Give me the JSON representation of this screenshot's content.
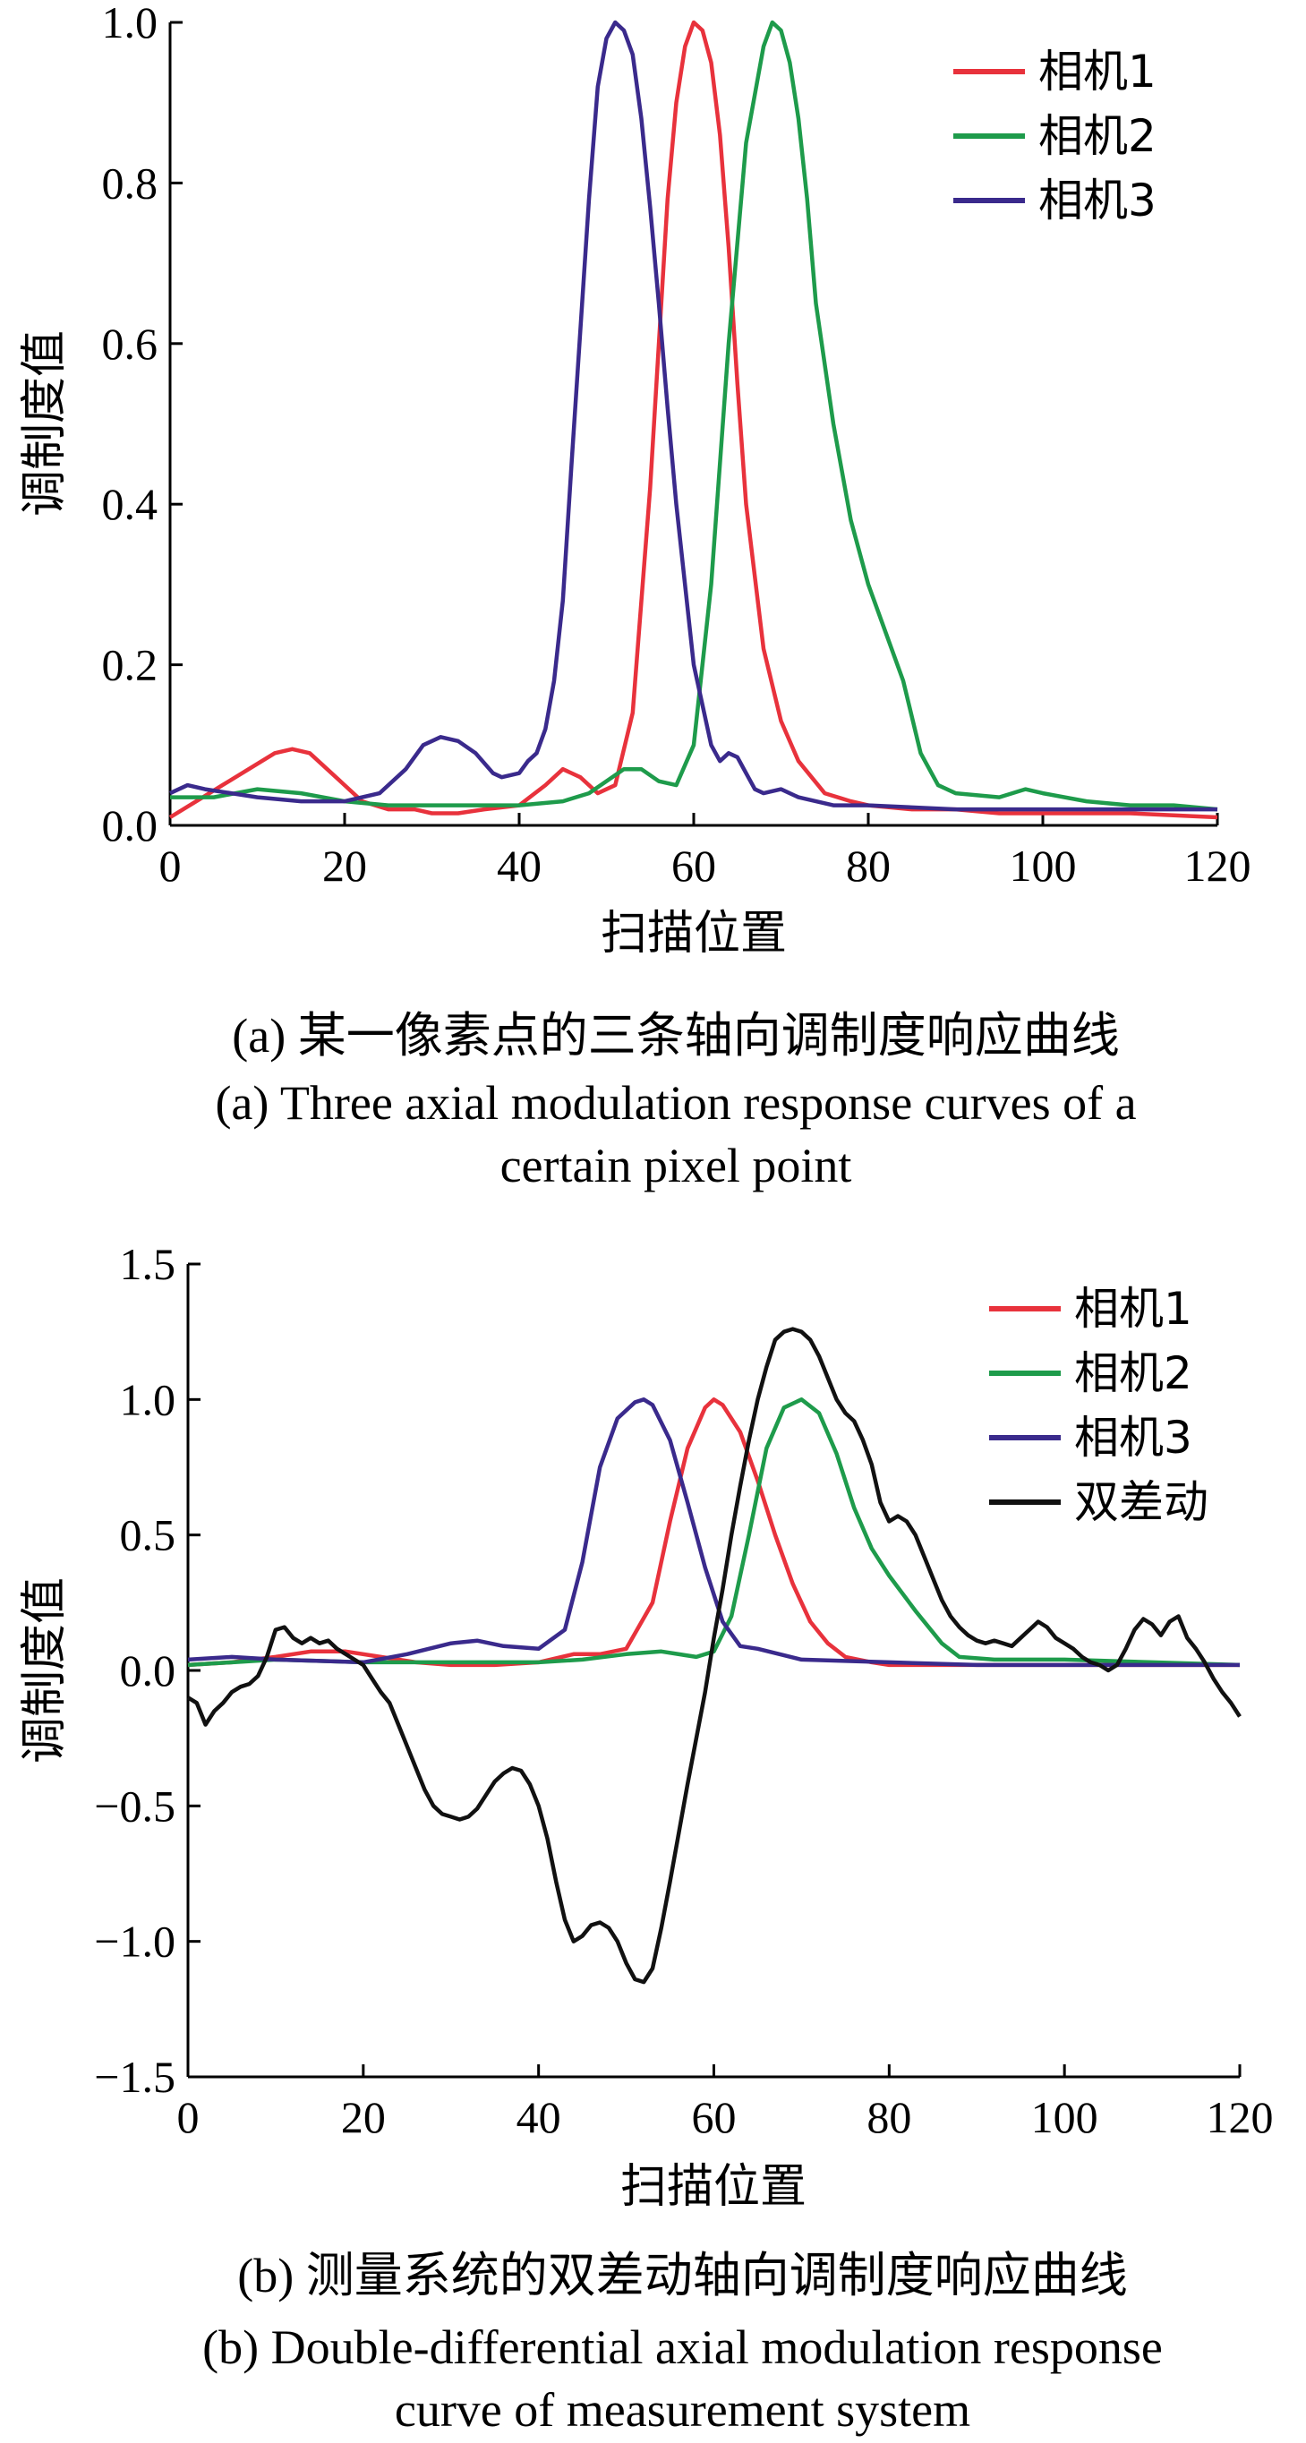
{
  "chart_data": [
    {
      "type": "line",
      "title": "",
      "xlabel": "扫描位置",
      "ylabel": "调制度值",
      "xlim": [
        0,
        120
      ],
      "ylim": [
        0,
        1.0
      ],
      "xticks": [
        0,
        20,
        40,
        60,
        80,
        100,
        120
      ],
      "xtick_labels": [
        "0",
        "20",
        "40",
        "60",
        "80",
        "100",
        "120"
      ],
      "yticks": [
        0,
        0.2,
        0.4,
        0.6,
        0.8,
        1.0
      ],
      "ytick_labels": [
        "0.0",
        "0.2",
        "0.4",
        "0.6",
        "0.8",
        "1.0"
      ],
      "grid": false,
      "legend_position": "top-right",
      "caption_zh": "(a) 某一像素点的三条轴向调制度响应曲线",
      "caption_en": [
        "(a) Three axial modulation response curves of a",
        "certain pixel point"
      ],
      "series": [
        {
          "name": "相机1",
          "color": "#e8323c",
          "x": [
            0,
            3,
            6,
            9,
            12,
            14,
            16,
            18,
            20,
            22,
            25,
            28,
            30,
            33,
            36,
            40,
            43,
            45,
            47,
            49,
            51,
            53,
            55,
            57,
            58,
            59,
            60,
            61,
            62,
            63,
            64,
            65,
            66,
            68,
            70,
            72,
            75,
            78,
            80,
            85,
            90,
            95,
            100,
            110,
            120
          ],
          "y": [
            0.01,
            0.03,
            0.05,
            0.07,
            0.09,
            0.095,
            0.09,
            0.07,
            0.05,
            0.03,
            0.02,
            0.02,
            0.015,
            0.015,
            0.02,
            0.025,
            0.05,
            0.07,
            0.06,
            0.04,
            0.05,
            0.14,
            0.42,
            0.78,
            0.9,
            0.97,
            1.0,
            0.99,
            0.95,
            0.86,
            0.72,
            0.55,
            0.4,
            0.22,
            0.13,
            0.08,
            0.04,
            0.03,
            0.025,
            0.02,
            0.02,
            0.015,
            0.015,
            0.015,
            0.01
          ]
        },
        {
          "name": "相机2",
          "color": "#1e9b4b",
          "x": [
            0,
            5,
            10,
            15,
            20,
            25,
            30,
            35,
            40,
            45,
            48,
            52,
            54,
            56,
            58,
            60,
            62,
            64,
            66,
            68,
            69,
            70,
            71,
            72,
            73,
            74,
            76,
            78,
            80,
            82,
            84,
            86,
            88,
            90,
            95,
            98,
            100,
            105,
            110,
            115,
            120
          ],
          "y": [
            0.035,
            0.035,
            0.045,
            0.04,
            0.03,
            0.025,
            0.025,
            0.025,
            0.025,
            0.03,
            0.04,
            0.07,
            0.07,
            0.055,
            0.05,
            0.1,
            0.3,
            0.6,
            0.85,
            0.97,
            1.0,
            0.99,
            0.95,
            0.88,
            0.78,
            0.65,
            0.5,
            0.38,
            0.3,
            0.24,
            0.18,
            0.09,
            0.05,
            0.04,
            0.035,
            0.045,
            0.04,
            0.03,
            0.025,
            0.025,
            0.02
          ]
        },
        {
          "name": "相机3",
          "color": "#3a2a8c",
          "x": [
            0,
            2,
            4,
            7,
            10,
            15,
            20,
            24,
            27,
            29,
            31,
            33,
            35,
            37,
            38,
            40,
            41,
            42,
            43,
            44,
            45,
            46,
            48,
            49,
            50,
            51,
            52,
            53,
            54,
            55,
            56,
            57,
            58,
            60,
            62,
            63,
            64,
            65,
            66,
            67,
            68,
            70,
            72,
            74,
            76,
            80,
            90,
            100,
            110,
            120
          ],
          "y": [
            0.04,
            0.05,
            0.045,
            0.04,
            0.035,
            0.03,
            0.03,
            0.04,
            0.07,
            0.1,
            0.11,
            0.105,
            0.09,
            0.065,
            0.06,
            0.065,
            0.08,
            0.09,
            0.12,
            0.18,
            0.28,
            0.45,
            0.78,
            0.92,
            0.98,
            1.0,
            0.99,
            0.96,
            0.88,
            0.77,
            0.65,
            0.52,
            0.4,
            0.2,
            0.1,
            0.08,
            0.09,
            0.085,
            0.065,
            0.045,
            0.04,
            0.045,
            0.035,
            0.03,
            0.025,
            0.025,
            0.02,
            0.02,
            0.02,
            0.02
          ]
        }
      ]
    },
    {
      "type": "line",
      "title": "",
      "xlabel": "扫描位置",
      "ylabel": "调制度值",
      "xlim": [
        0,
        120
      ],
      "ylim": [
        -1.5,
        1.5
      ],
      "xticks": [
        0,
        20,
        40,
        60,
        80,
        100,
        120
      ],
      "xtick_labels": [
        "0",
        "20",
        "40",
        "60",
        "80",
        "100",
        "120"
      ],
      "yticks": [
        -1.5,
        -1.0,
        -0.5,
        0.0,
        0.5,
        1.0,
        1.5
      ],
      "ytick_labels": [
        "−1.5",
        "−1.0",
        "−0.5",
        "0.0",
        "0.5",
        "1.0",
        "1.5"
      ],
      "grid": false,
      "legend_position": "top-right",
      "caption_zh": "(b) 测量系统的双差动轴向调制度响应曲线",
      "caption_en": [
        "(b) Double-differential axial modulation response",
        "curve of measurement system"
      ],
      "series": [
        {
          "name": "相机1",
          "color": "#e8323c",
          "x": [
            0,
            5,
            10,
            14,
            18,
            22,
            26,
            30,
            35,
            40,
            44,
            47,
            50,
            53,
            55,
            57,
            59,
            60,
            61,
            63,
            65,
            67,
            69,
            71,
            73,
            75,
            78,
            80,
            90,
            100,
            110,
            120
          ],
          "y": [
            0.02,
            0.03,
            0.05,
            0.07,
            0.07,
            0.05,
            0.03,
            0.02,
            0.02,
            0.03,
            0.06,
            0.06,
            0.08,
            0.25,
            0.55,
            0.82,
            0.97,
            1.0,
            0.98,
            0.88,
            0.7,
            0.5,
            0.32,
            0.18,
            0.1,
            0.05,
            0.03,
            0.02,
            0.02,
            0.02,
            0.02,
            0.02
          ]
        },
        {
          "name": "相机2",
          "color": "#1e9b4b",
          "x": [
            0,
            10,
            20,
            30,
            40,
            45,
            50,
            54,
            58,
            60,
            62,
            64,
            66,
            68,
            70,
            72,
            74,
            76,
            78,
            80,
            83,
            86,
            88,
            92,
            100,
            110,
            120
          ],
          "y": [
            0.02,
            0.04,
            0.03,
            0.03,
            0.03,
            0.04,
            0.06,
            0.07,
            0.05,
            0.07,
            0.2,
            0.5,
            0.82,
            0.97,
            1.0,
            0.95,
            0.8,
            0.6,
            0.45,
            0.35,
            0.22,
            0.1,
            0.05,
            0.04,
            0.04,
            0.03,
            0.02
          ]
        },
        {
          "name": "相机3",
          "color": "#3a2a8c",
          "x": [
            0,
            5,
            10,
            20,
            25,
            30,
            33,
            36,
            40,
            43,
            45,
            47,
            49,
            51,
            52,
            53,
            55,
            57,
            59,
            61,
            63,
            65,
            70,
            80,
            90,
            100,
            110,
            120
          ],
          "y": [
            0.04,
            0.05,
            0.04,
            0.03,
            0.06,
            0.1,
            0.11,
            0.09,
            0.08,
            0.15,
            0.4,
            0.75,
            0.93,
            0.99,
            1.0,
            0.98,
            0.85,
            0.62,
            0.38,
            0.18,
            0.09,
            0.08,
            0.04,
            0.03,
            0.02,
            0.02,
            0.02,
            0.02
          ]
        },
        {
          "name": "双差动",
          "color": "#111111",
          "x": [
            0,
            1,
            2,
            3,
            4,
            5,
            6,
            7,
            8,
            9,
            10,
            11,
            12,
            13,
            14,
            15,
            16,
            17,
            18,
            19,
            20,
            21,
            22,
            23,
            24,
            25,
            26,
            27,
            28,
            29,
            30,
            31,
            32,
            33,
            34,
            35,
            36,
            37,
            38,
            39,
            40,
            41,
            42,
            43,
            44,
            45,
            46,
            47,
            48,
            49,
            50,
            51,
            52,
            53,
            54,
            55,
            56,
            57,
            58,
            59,
            60,
            61,
            62,
            63,
            64,
            65,
            66,
            67,
            68,
            69,
            70,
            71,
            72,
            73,
            74,
            75,
            76,
            77,
            78,
            79,
            80,
            81,
            82,
            83,
            84,
            85,
            86,
            87,
            88,
            89,
            90,
            91,
            92,
            93,
            94,
            95,
            96,
            97,
            98,
            99,
            100,
            101,
            102,
            103,
            104,
            105,
            106,
            107,
            108,
            109,
            110,
            111,
            112,
            113,
            114,
            115,
            116,
            117,
            118,
            119,
            120
          ],
          "y": [
            -0.1,
            -0.12,
            -0.2,
            -0.15,
            -0.12,
            -0.08,
            -0.06,
            -0.05,
            -0.02,
            0.05,
            0.15,
            0.16,
            0.12,
            0.1,
            0.12,
            0.1,
            0.11,
            0.08,
            0.06,
            0.04,
            0.02,
            -0.03,
            -0.08,
            -0.12,
            -0.2,
            -0.28,
            -0.36,
            -0.44,
            -0.5,
            -0.53,
            -0.54,
            -0.55,
            -0.54,
            -0.51,
            -0.46,
            -0.41,
            -0.38,
            -0.36,
            -0.37,
            -0.42,
            -0.5,
            -0.62,
            -0.78,
            -0.92,
            -1.0,
            -0.98,
            -0.94,
            -0.93,
            -0.95,
            -1.0,
            -1.08,
            -1.14,
            -1.15,
            -1.1,
            -0.95,
            -0.78,
            -0.6,
            -0.42,
            -0.25,
            -0.08,
            0.12,
            0.3,
            0.5,
            0.68,
            0.85,
            1.0,
            1.12,
            1.22,
            1.25,
            1.26,
            1.25,
            1.22,
            1.16,
            1.08,
            1.0,
            0.95,
            0.92,
            0.85,
            0.76,
            0.62,
            0.55,
            0.57,
            0.55,
            0.5,
            0.42,
            0.34,
            0.26,
            0.2,
            0.16,
            0.13,
            0.11,
            0.1,
            0.11,
            0.1,
            0.09,
            0.12,
            0.15,
            0.18,
            0.16,
            0.12,
            0.1,
            0.08,
            0.05,
            0.03,
            0.02,
            0.0,
            0.02,
            0.08,
            0.15,
            0.19,
            0.17,
            0.13,
            0.18,
            0.2,
            0.12,
            0.08,
            0.03,
            -0.03,
            -0.08,
            -0.12,
            -0.17
          ]
        }
      ]
    }
  ]
}
